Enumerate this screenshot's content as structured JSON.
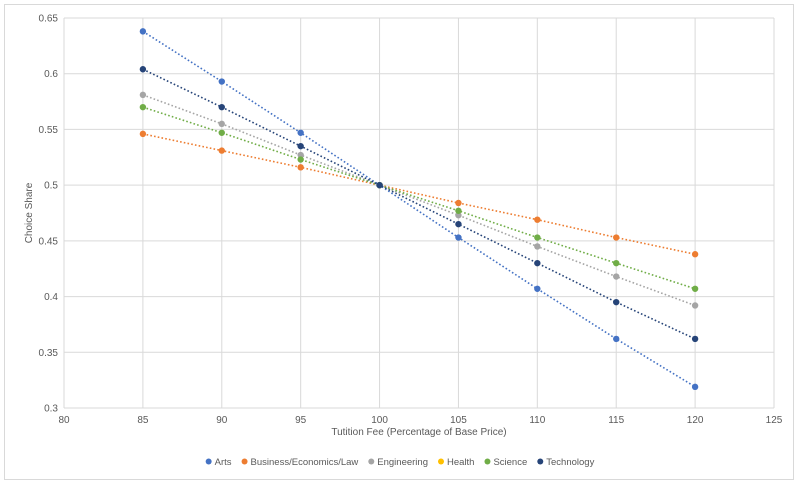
{
  "chart_data": {
    "type": "scatter",
    "title": "",
    "xlabel": "Tutition Fee (Percentage of Base Price)",
    "ylabel": "Choice Share",
    "xlim": [
      80,
      125
    ],
    "ylim": [
      0.3,
      0.65
    ],
    "x_ticks": [
      "80",
      "85",
      "90",
      "95",
      "100",
      "105",
      "110",
      "115",
      "120",
      "125"
    ],
    "y_ticks": [
      "0.3",
      "0.35",
      "0.4",
      "0.45",
      "0.5",
      "0.55",
      "0.6",
      "0.65"
    ],
    "grid": true,
    "legend_position": "bottom",
    "x": [
      85,
      90,
      95,
      100,
      105,
      110,
      115,
      120
    ],
    "series": [
      {
        "name": "Arts",
        "color": "#4472C4",
        "values": [
          0.638,
          0.593,
          0.547,
          0.5,
          0.453,
          0.407,
          0.362,
          0.319
        ]
      },
      {
        "name": "Business/Economics/Law",
        "color": "#ED7D31",
        "values": [
          0.546,
          0.531,
          0.516,
          0.5,
          0.484,
          0.469,
          0.453,
          0.438
        ]
      },
      {
        "name": "Engineering",
        "color": "#A5A5A5",
        "values": [
          0.581,
          0.555,
          0.527,
          0.5,
          0.473,
          0.445,
          0.418,
          0.392
        ]
      },
      {
        "name": "Health",
        "color": "#FFC000",
        "values": [
          null,
          null,
          null,
          null,
          null,
          null,
          null,
          null
        ]
      },
      {
        "name": "Science",
        "color": "#70AD47",
        "values": [
          0.57,
          0.547,
          0.523,
          0.5,
          0.477,
          0.453,
          0.43,
          0.407
        ]
      },
      {
        "name": "Technology",
        "color": "#264478",
        "values": [
          0.604,
          0.57,
          0.535,
          0.5,
          0.465,
          0.43,
          0.395,
          0.362
        ]
      }
    ]
  }
}
